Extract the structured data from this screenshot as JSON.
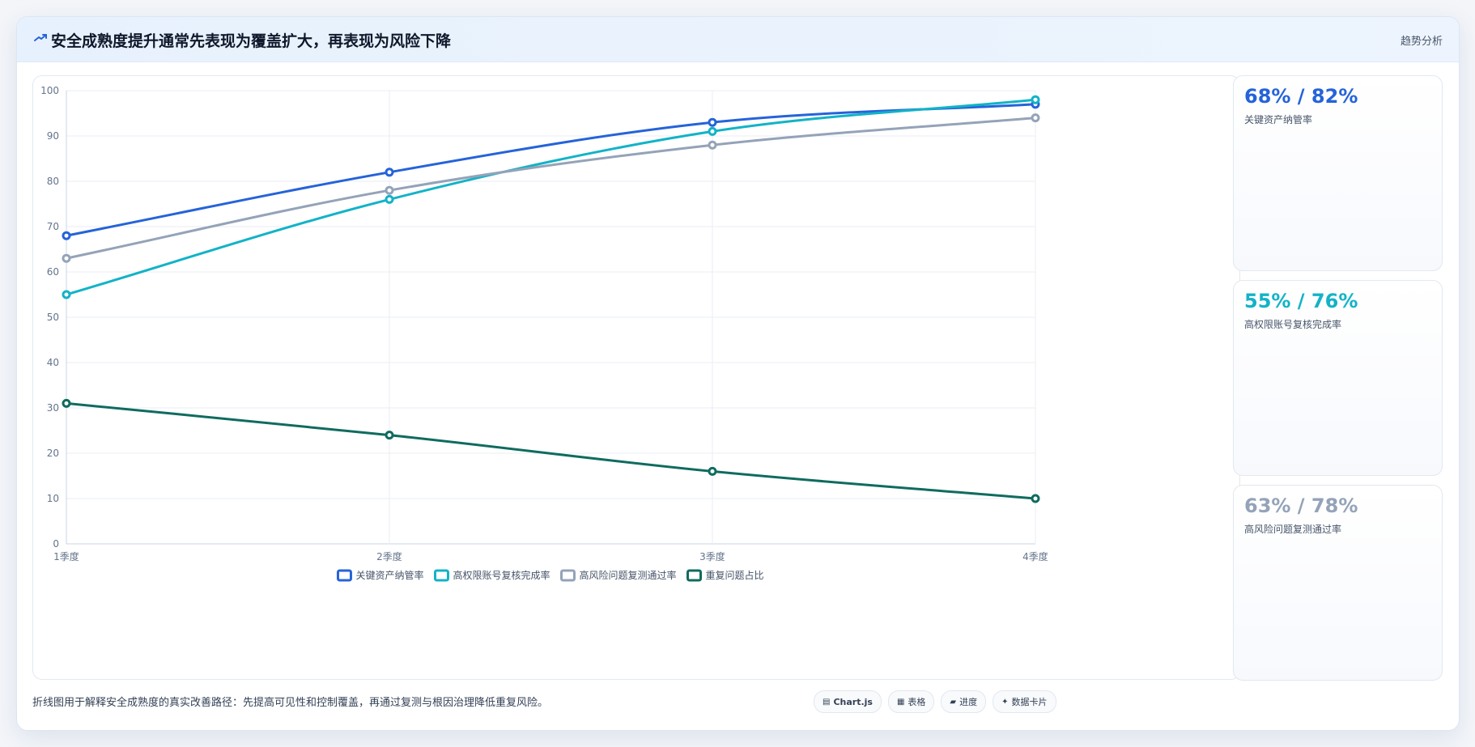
{
  "header": {
    "title": "安全成熟度提升通常先表现为覆盖扩大，再表现为风险下降",
    "tag": "趋势分析",
    "icon": "trend-line-icon"
  },
  "chart_data": {
    "type": "line",
    "categories": [
      "1季度",
      "2季度",
      "3季度",
      "4季度"
    ],
    "ylim": [
      0,
      100
    ],
    "yticks": [
      0,
      10,
      20,
      30,
      40,
      50,
      60,
      70,
      80,
      90,
      100
    ],
    "grid": true,
    "legend_position": "bottom",
    "title": "",
    "xlabel": "",
    "ylabel": "",
    "series": [
      {
        "name": "关键资产纳管率",
        "values": [
          68,
          82,
          93,
          97
        ],
        "color": "#2563d9"
      },
      {
        "name": "高权限账号复核完成率",
        "values": [
          55,
          76,
          91,
          98
        ],
        "color": "#12b3c7"
      },
      {
        "name": "高风险问题复测通过率",
        "values": [
          63,
          78,
          88,
          94
        ],
        "color": "#94a3b8"
      },
      {
        "name": "重复问题占比",
        "values": [
          31,
          24,
          16,
          10
        ],
        "color": "#0f6b5f"
      }
    ]
  },
  "kpis": [
    {
      "value": "68% / 82%",
      "label": "关键资产纳管率",
      "color": "#2563d9"
    },
    {
      "value": "55% / 76%",
      "label": "高权限账号复核完成率",
      "color": "#12b3c7"
    },
    {
      "value": "63% / 78%",
      "label": "高风险问题复测通过率",
      "color": "#94a3b8"
    }
  ],
  "footer": {
    "note": "折线图用于解释安全成熟度的真实改善路径：先提高可见性和控制覆盖，再通过复测与根因治理降低重复风险。",
    "chips": [
      {
        "label": "Chart.js",
        "icon": "chart-icon",
        "glyph": "▤"
      },
      {
        "label": "表格",
        "icon": "table-icon",
        "glyph": "▦"
      },
      {
        "label": "进度",
        "icon": "progress-icon",
        "glyph": "▰"
      },
      {
        "label": "数据卡片",
        "icon": "sparkle-icon",
        "glyph": "✦"
      }
    ]
  }
}
